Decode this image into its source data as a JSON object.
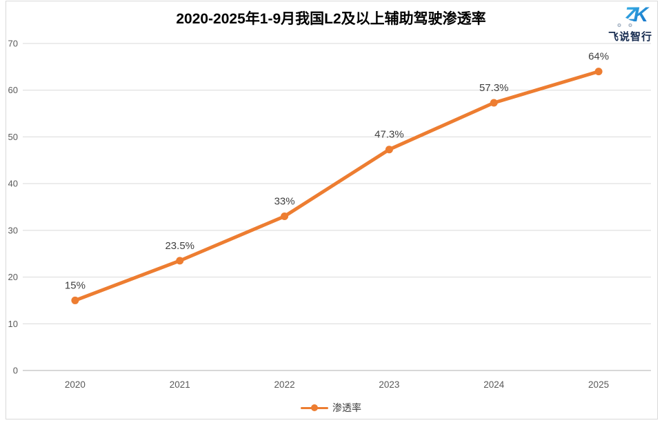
{
  "title": "2020-2025年1-9月我国L2及以上辅助驾驶渗透率",
  "logo": {
    "brand": "飞说智行",
    "mark_text": "ZK"
  },
  "legend": {
    "items": [
      {
        "label": "渗透率",
        "color": "#ED7D31"
      }
    ]
  },
  "chart_data": {
    "type": "line",
    "title": "2020-2025年1-9月我国L2及以上辅助驾驶渗透率",
    "categories": [
      "2020",
      "2021",
      "2022",
      "2023",
      "2024",
      "2025"
    ],
    "series": [
      {
        "name": "渗透率",
        "values": [
          15,
          23.5,
          33,
          47.3,
          57.3,
          64
        ],
        "color": "#ED7D31"
      }
    ],
    "data_labels": [
      "15%",
      "23.5%",
      "33%",
      "47.3%",
      "57.3%",
      "64%"
    ],
    "xlabel": "",
    "ylabel": "",
    "ylim": [
      0,
      70
    ],
    "ytick_step": 10,
    "grid": true,
    "legend_position": "bottom"
  },
  "colors": {
    "line": "#ED7D31",
    "grid": "#D9D9D9",
    "axis_line": "#BFBFBF",
    "tick_text": "#595959",
    "label_text": "#404040",
    "title_text": "#000000",
    "border": "#D9D9D9",
    "logo_blue_light": "#3FB9EA",
    "logo_blue_dark": "#0F6AC4",
    "logo_dark": "#152A4E",
    "background": "#FFFFFF"
  }
}
